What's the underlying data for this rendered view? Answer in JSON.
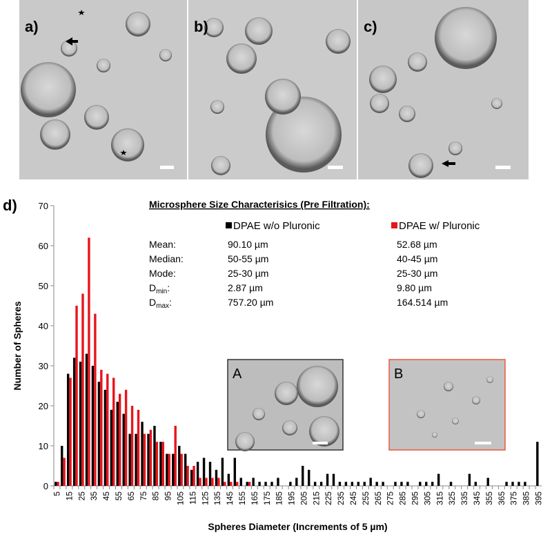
{
  "panels": [
    {
      "label": "a)"
    },
    {
      "label": "b)"
    },
    {
      "label": "c)"
    }
  ],
  "inset_labels": [
    "A",
    "B"
  ],
  "chart_data": {
    "type": "bar",
    "panel_label": "d)",
    "x_label": "Spheres Diameter (Increments of 5 µm)",
    "y_label": "Number of Spheres",
    "categories": [
      "5",
      null,
      "15",
      null,
      "25",
      null,
      "35",
      null,
      "45",
      null,
      "55",
      null,
      "65",
      null,
      "75",
      null,
      "85",
      null,
      "95",
      null,
      "105",
      null,
      "115",
      null,
      "125",
      null,
      "135",
      null,
      "145",
      null,
      "155",
      null,
      "165",
      null,
      "175",
      null,
      "185",
      null,
      "195",
      null,
      "205",
      null,
      "215",
      null,
      "225",
      null,
      "235",
      null,
      "245",
      null,
      "255",
      null,
      "265",
      null,
      "275",
      null,
      "285",
      null,
      "295",
      null,
      "305",
      null,
      "315",
      null,
      "325",
      null,
      "335",
      null,
      "345",
      null,
      "355",
      null,
      "365",
      null,
      "375",
      null,
      "385",
      null,
      "395"
    ],
    "series": [
      {
        "name": "DPAE w/o Pluronic",
        "color": "#000000",
        "values": [
          1,
          10,
          28,
          32,
          31,
          33,
          30,
          26,
          24,
          19,
          21,
          18,
          13,
          13,
          16,
          13,
          15,
          11,
          8,
          8,
          10,
          8,
          4,
          6,
          7,
          6,
          4,
          7,
          3,
          7,
          2,
          1,
          2,
          1,
          1,
          1,
          2,
          0,
          1,
          2,
          5,
          4,
          1,
          1,
          3,
          3,
          1,
          1,
          1,
          1,
          1,
          2,
          1,
          1,
          0,
          1,
          1,
          1,
          0,
          1,
          1,
          1,
          3,
          0,
          1,
          0,
          0,
          3,
          1,
          0,
          2,
          0,
          0,
          1,
          1,
          1,
          1,
          0,
          11
        ]
      },
      {
        "name": "DPAE w/ Pluronic",
        "color": "#e8141b",
        "values": [
          1,
          7,
          27,
          45,
          48,
          62,
          43,
          29,
          28,
          27,
          23,
          24,
          20,
          19,
          13,
          14,
          11,
          11,
          8,
          15,
          8,
          5,
          5,
          2,
          2,
          2,
          2,
          1,
          1,
          1,
          0,
          1,
          0,
          0,
          0,
          0,
          0,
          0,
          0,
          0,
          0,
          0,
          0,
          0,
          0,
          0,
          0,
          0,
          0,
          0,
          0,
          0,
          0,
          0,
          0,
          0,
          0,
          0,
          0,
          0,
          0,
          0,
          0,
          0,
          0,
          0,
          0,
          0,
          0,
          0,
          0,
          0,
          0,
          0,
          0,
          0,
          0,
          0,
          0
        ]
      }
    ],
    "ylim": [
      0,
      70
    ],
    "yticks": [
      0,
      10,
      20,
      30,
      40,
      50,
      60,
      70
    ],
    "stats": {
      "title": "Microsphere Size Characterisics (Pre Filtration):",
      "rows": [
        {
          "label": "Mean:",
          "values": [
            "90.10 µm",
            "52.68 µm"
          ]
        },
        {
          "label": "Median:",
          "values": [
            "50-55 µm",
            "40-45 µm"
          ]
        },
        {
          "label": "Mode:",
          "values": [
            "25-30 µm",
            "25-30 µm"
          ]
        },
        {
          "label": "D",
          "sub": "min",
          "label_end": ":",
          "values": [
            "2.87 µm",
            "9.80 µm"
          ]
        },
        {
          "label": "D",
          "sub": "max",
          "label_end": ":",
          "values": [
            "757.20 µm",
            "164.514 µm"
          ]
        }
      ]
    }
  }
}
